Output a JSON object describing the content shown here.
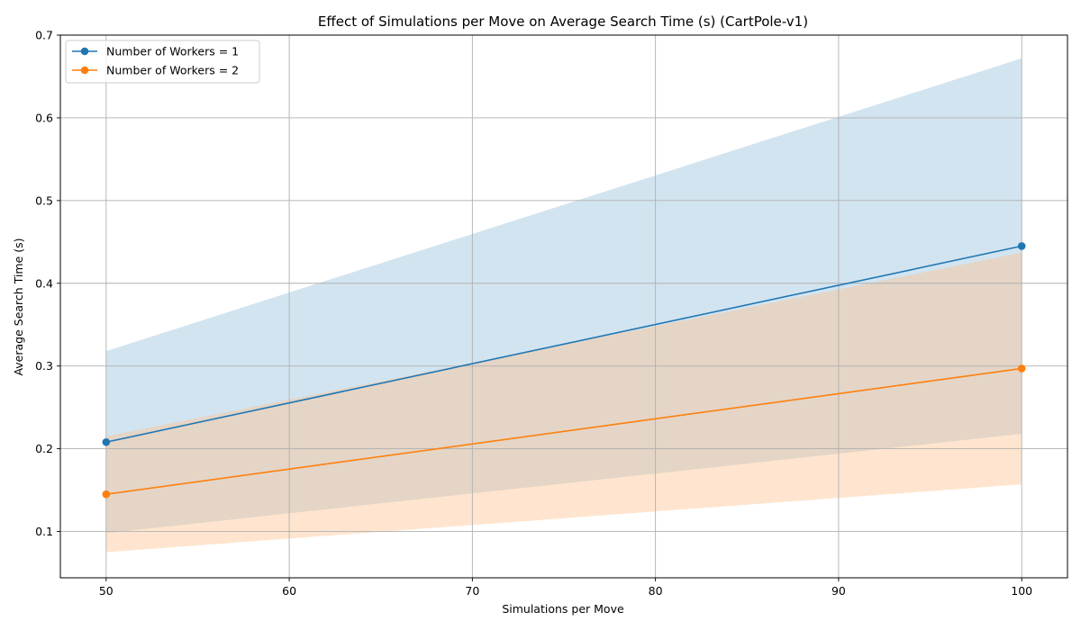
{
  "chart_data": {
    "type": "line",
    "title": "Effect of Simulations per Move on Average Search Time (s) (CartPole-v1)",
    "xlabel": "Simulations per Move",
    "ylabel": "Average Search Time (s)",
    "xlim": [
      47.5,
      102.5
    ],
    "ylim": [
      0.044,
      0.7
    ],
    "xticks": [
      50,
      60,
      70,
      80,
      90,
      100
    ],
    "yticks": [
      0.1,
      0.2,
      0.3,
      0.4,
      0.5,
      0.6,
      0.7
    ],
    "grid": true,
    "legend_position": "upper-left",
    "x": [
      50,
      100
    ],
    "series": [
      {
        "name": "Number of Workers = 1",
        "color": "#1f77b4",
        "band_color": "#1f77b4",
        "values": [
          0.208,
          0.445
        ],
        "lower": [
          0.098,
          0.218
        ],
        "upper": [
          0.318,
          0.672
        ]
      },
      {
        "name": "Number of Workers = 2",
        "color": "#ff7f0e",
        "band_color": "#ffbe86",
        "values": [
          0.145,
          0.297
        ],
        "lower": [
          0.075,
          0.157
        ],
        "upper": [
          0.215,
          0.437
        ]
      }
    ]
  }
}
